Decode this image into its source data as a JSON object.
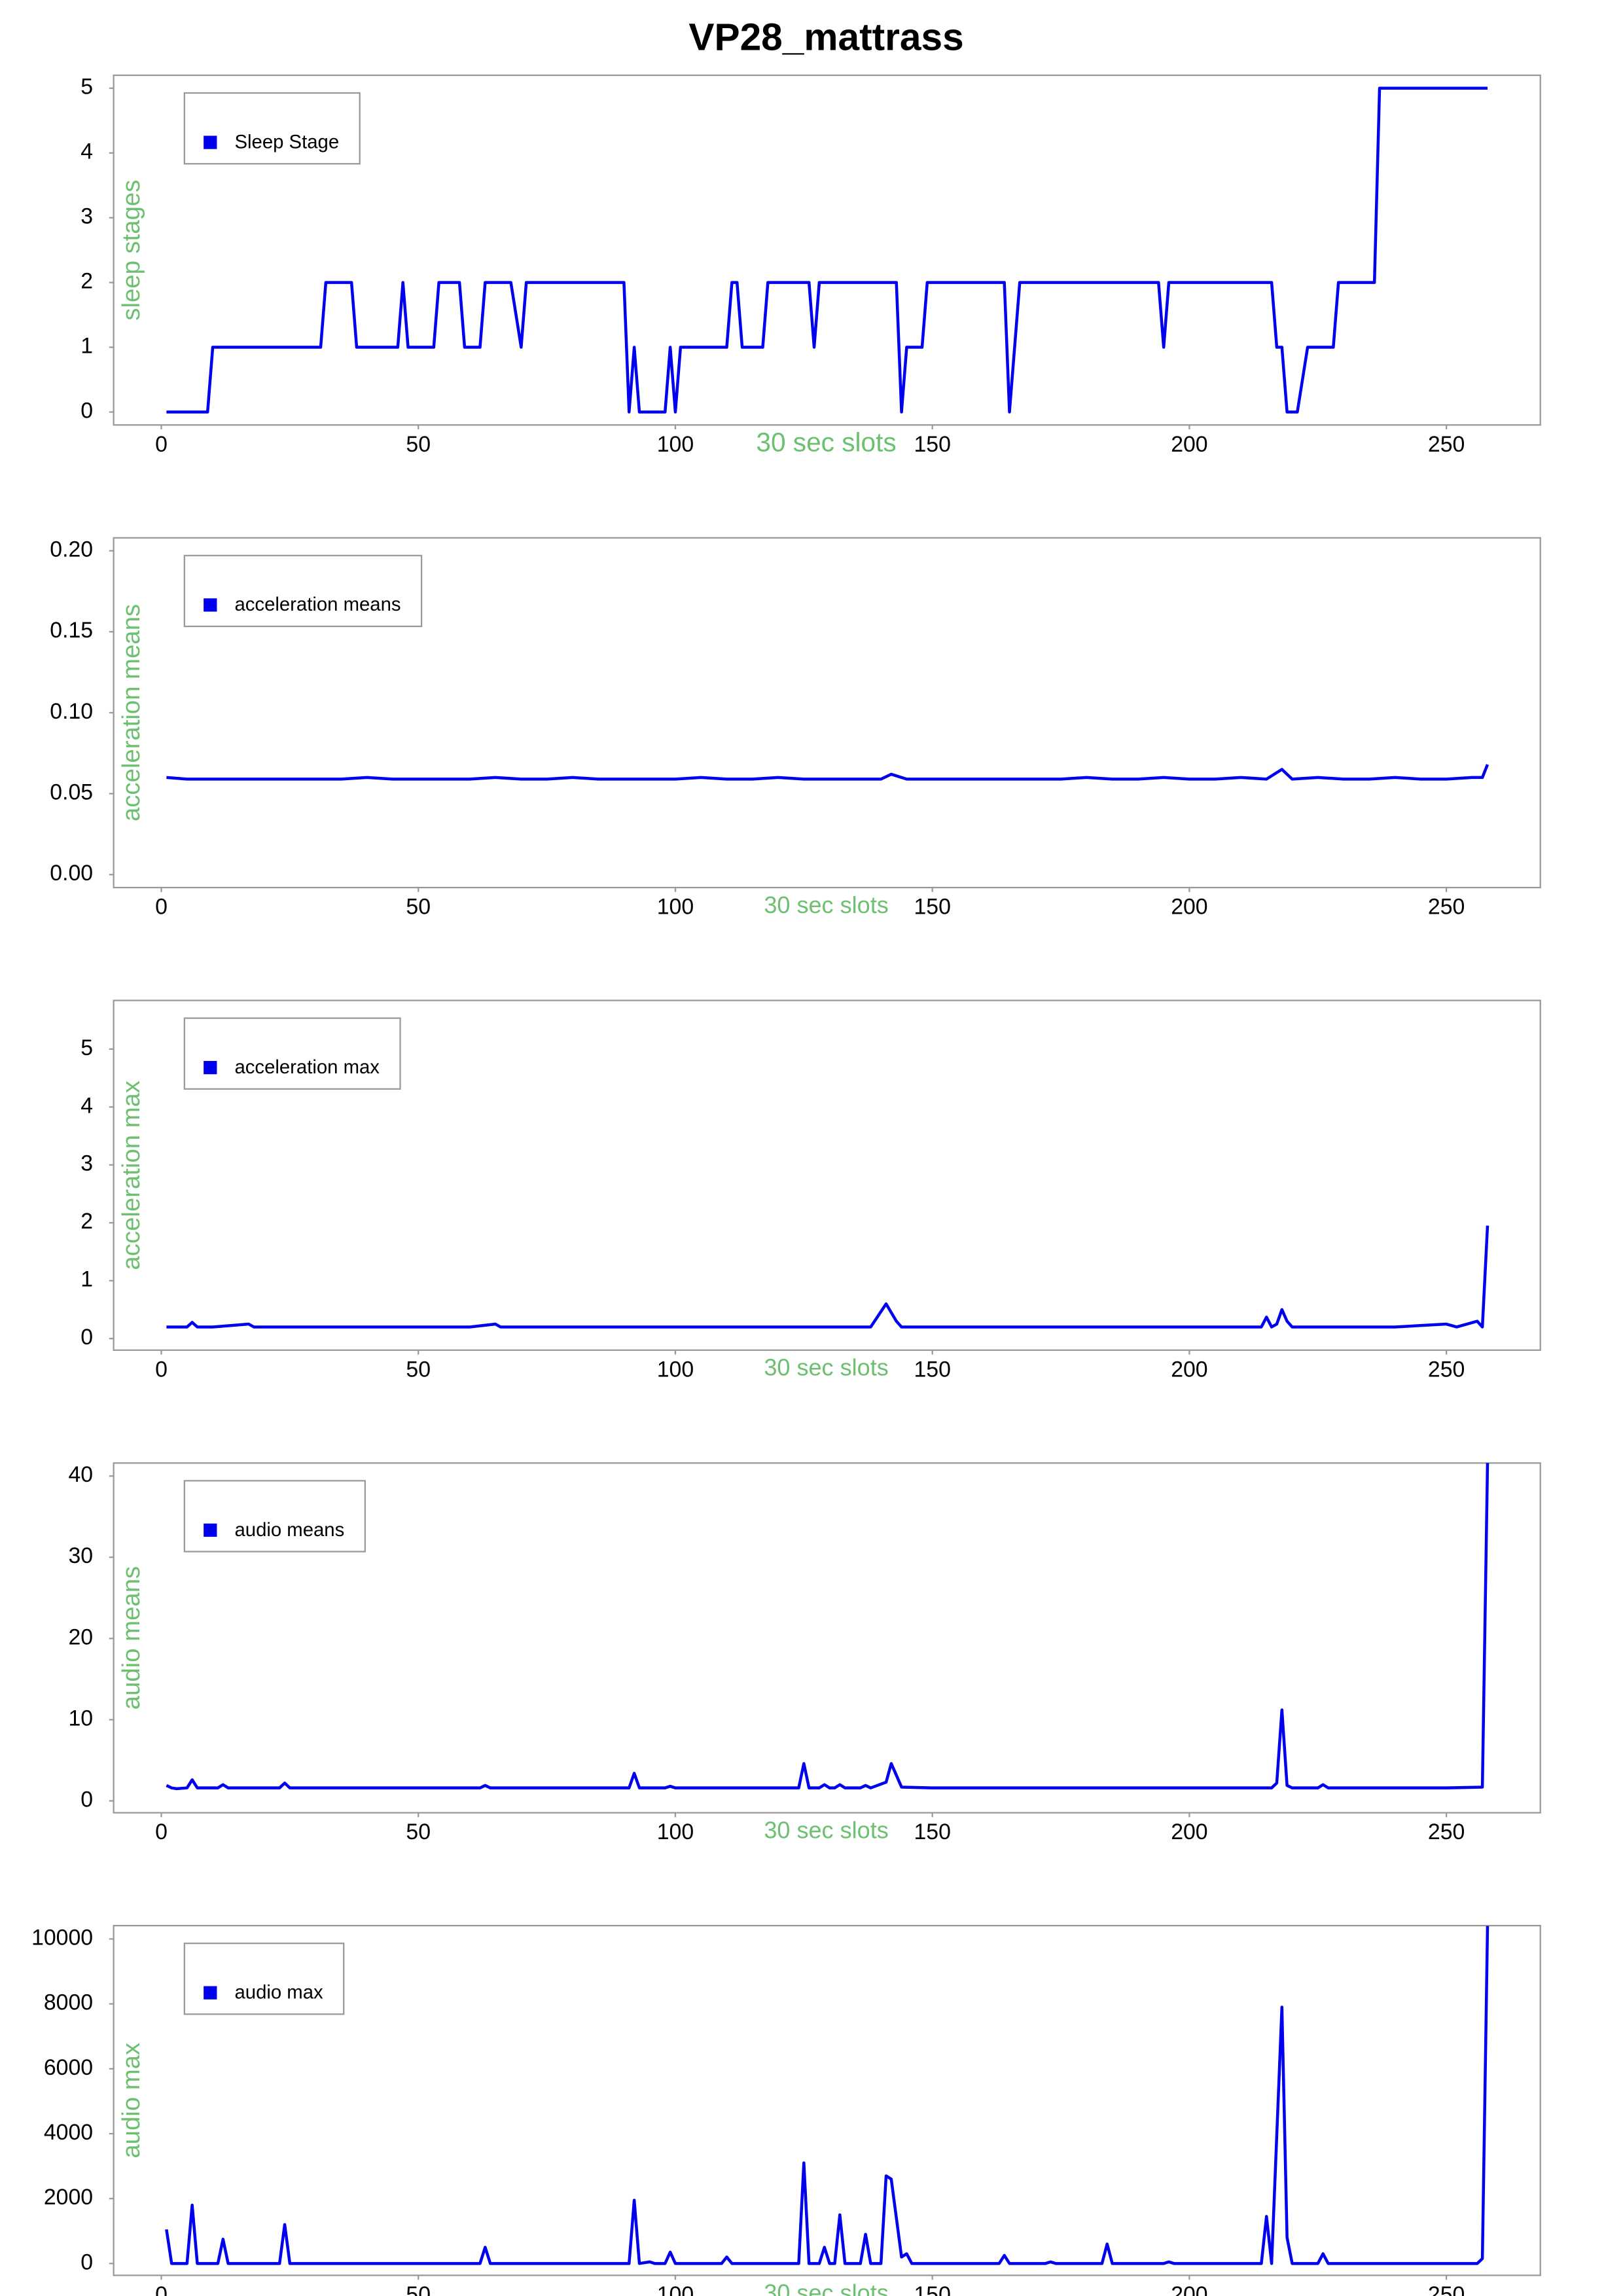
{
  "title": "VP28_mattrass",
  "chart_data": [
    {
      "type": "line",
      "x_label": "30 sec slots",
      "y_label": "sleep stages",
      "legend": "top-left",
      "x": [
        1,
        9,
        10,
        31,
        32,
        37,
        38,
        46,
        47,
        48,
        53,
        54,
        58,
        59,
        62,
        63,
        68,
        70,
        71,
        90,
        91,
        92,
        93,
        98,
        99,
        100,
        101,
        110,
        111,
        112,
        113,
        117,
        118,
        126,
        127,
        128,
        143,
        144,
        145,
        148,
        149,
        164,
        165,
        167,
        194,
        195,
        196,
        216,
        217,
        218,
        219,
        221,
        223,
        228,
        229,
        236,
        237,
        258
      ],
      "series": [
        {
          "name": "Sleep Stage",
          "color": "#0000ee",
          "values": [
            0,
            0,
            1,
            1,
            2,
            2,
            1,
            1,
            2,
            1,
            1,
            2,
            2,
            1,
            1,
            2,
            2,
            1,
            2,
            2,
            0,
            1,
            0,
            0,
            1,
            0,
            1,
            1,
            2,
            2,
            1,
            1,
            2,
            2,
            1,
            2,
            2,
            0,
            1,
            1,
            2,
            2,
            0,
            2,
            2,
            1,
            2,
            2,
            1,
            1,
            0,
            0,
            1,
            1,
            2,
            2,
            5,
            5
          ]
        }
      ],
      "xlim": [
        -9.28,
        268.28
      ],
      "ylim": [
        -0.2,
        5.2
      ],
      "xticks": [
        0,
        50,
        100,
        150,
        200,
        250
      ],
      "yticks": [
        0,
        1,
        2,
        3,
        4,
        5
      ]
    },
    {
      "type": "line",
      "x_label": "30 sec slots",
      "y_label": "acceleration means",
      "legend": "top-left",
      "x": [
        1,
        5,
        10,
        15,
        20,
        25,
        30,
        35,
        40,
        45,
        50,
        55,
        60,
        65,
        70,
        75,
        80,
        85,
        90,
        95,
        100,
        105,
        110,
        115,
        120,
        125,
        130,
        135,
        140,
        142,
        145,
        150,
        155,
        160,
        165,
        170,
        175,
        180,
        185,
        190,
        195,
        200,
        205,
        210,
        215,
        218,
        220,
        225,
        230,
        235,
        240,
        245,
        250,
        255,
        257,
        258
      ],
      "series": [
        {
          "name": "acceleration means",
          "color": "#0000ee",
          "values": [
            0.06,
            0.059,
            0.059,
            0.059,
            0.059,
            0.059,
            0.059,
            0.059,
            0.06,
            0.059,
            0.059,
            0.059,
            0.059,
            0.06,
            0.059,
            0.059,
            0.06,
            0.059,
            0.059,
            0.059,
            0.059,
            0.06,
            0.059,
            0.059,
            0.06,
            0.059,
            0.059,
            0.059,
            0.059,
            0.062,
            0.059,
            0.059,
            0.059,
            0.059,
            0.059,
            0.059,
            0.059,
            0.06,
            0.059,
            0.059,
            0.06,
            0.059,
            0.059,
            0.06,
            0.059,
            0.065,
            0.059,
            0.06,
            0.059,
            0.059,
            0.06,
            0.059,
            0.059,
            0.06,
            0.06,
            0.068
          ]
        }
      ],
      "xlim": [
        -9.28,
        268.28
      ],
      "ylim": [
        -0.008,
        0.208
      ],
      "xticks": [
        0,
        50,
        100,
        150,
        200,
        250
      ],
      "yticks": [
        {
          "value": 0,
          "label": "0.00"
        },
        {
          "value": 0.05,
          "label": "0.05"
        },
        {
          "value": 0.1,
          "label": "0.10"
        },
        {
          "value": 0.15,
          "label": "0.15"
        },
        {
          "value": 0.2,
          "label": "0.20"
        }
      ]
    },
    {
      "type": "line",
      "x_label": "30 sec slots",
      "y_label": "acceleration max",
      "legend": "top-left",
      "x": [
        1,
        5,
        6,
        7,
        10,
        17,
        18,
        20,
        30,
        40,
        50,
        60,
        65,
        66,
        70,
        80,
        90,
        100,
        110,
        120,
        130,
        138,
        141,
        143,
        144,
        150,
        160,
        170,
        180,
        190,
        200,
        210,
        214,
        215,
        216,
        217,
        218,
        219,
        220,
        230,
        240,
        250,
        252,
        256,
        257,
        258
      ],
      "series": [
        {
          "name": "acceleration max",
          "color": "#0000ee",
          "values": [
            0.2,
            0.2,
            0.28,
            0.2,
            0.2,
            0.25,
            0.2,
            0.2,
            0.2,
            0.2,
            0.2,
            0.2,
            0.25,
            0.2,
            0.2,
            0.2,
            0.2,
            0.2,
            0.2,
            0.2,
            0.2,
            0.2,
            0.6,
            0.3,
            0.2,
            0.2,
            0.2,
            0.2,
            0.2,
            0.2,
            0.2,
            0.2,
            0.2,
            0.37,
            0.2,
            0.25,
            0.5,
            0.3,
            0.2,
            0.2,
            0.2,
            0.25,
            0.2,
            0.3,
            0.2,
            1.95
          ]
        }
      ],
      "xlim": [
        -9.28,
        268.28
      ],
      "ylim": [
        -0.2,
        5.84
      ],
      "xticks": [
        0,
        50,
        100,
        150,
        200,
        250
      ],
      "yticks": [
        0,
        1,
        2,
        3,
        4,
        5
      ]
    },
    {
      "type": "line",
      "x_label": "30 sec slots",
      "y_label": "audio means",
      "legend": "top-left",
      "x": [
        1,
        2,
        3,
        5,
        6,
        7,
        11,
        12,
        13,
        23,
        24,
        25,
        50,
        62,
        63,
        64,
        91,
        92,
        93,
        98,
        99,
        100,
        124,
        125,
        126,
        128,
        129,
        130,
        131,
        132,
        133,
        136,
        137,
        138,
        141,
        142,
        144,
        150,
        200,
        216,
        217,
        218,
        219,
        220,
        225,
        226,
        227,
        250,
        257,
        258
      ],
      "series": [
        {
          "name": "audio means",
          "color": "#0000ee",
          "values": [
            1.9,
            1.6,
            1.5,
            1.6,
            2.6,
            1.6,
            1.6,
            2.0,
            1.6,
            1.6,
            2.2,
            1.6,
            1.6,
            1.6,
            1.9,
            1.6,
            1.6,
            3.4,
            1.6,
            1.6,
            1.8,
            1.6,
            1.6,
            4.6,
            1.6,
            1.6,
            2.0,
            1.6,
            1.6,
            2.0,
            1.6,
            1.6,
            1.9,
            1.6,
            2.3,
            4.6,
            1.7,
            1.6,
            1.6,
            1.6,
            2.2,
            11.2,
            1.9,
            1.6,
            1.6,
            2.0,
            1.6,
            1.6,
            1.7,
            41.6
          ]
        }
      ],
      "xlim": [
        -9.28,
        268.28
      ],
      "ylim": [
        -1.46,
        41.6
      ],
      "xticks": [
        0,
        50,
        100,
        150,
        200,
        250
      ],
      "yticks": [
        0,
        10,
        20,
        30,
        40
      ]
    },
    {
      "type": "line",
      "x_label": "30 sec slots",
      "y_label": "audio max",
      "legend": "top-left",
      "x": [
        1,
        2,
        5,
        6,
        7,
        11,
        12,
        13,
        23,
        24,
        25,
        62,
        63,
        64,
        91,
        92,
        93,
        95,
        96,
        98,
        99,
        100,
        109,
        110,
        111,
        124,
        125,
        126,
        128,
        129,
        130,
        131,
        132,
        133,
        136,
        137,
        138,
        140,
        141,
        142,
        144,
        145,
        146,
        163,
        164,
        165,
        172,
        173,
        174,
        183,
        184,
        185,
        195,
        196,
        197,
        214,
        215,
        216,
        218,
        219,
        220,
        225,
        226,
        227,
        256,
        257,
        258
      ],
      "series": [
        {
          "name": "audio max",
          "color": "#0000ee",
          "values": [
            1050,
            0,
            0,
            1800,
            0,
            0,
            750,
            0,
            0,
            1200,
            0,
            0,
            500,
            0,
            0,
            1950,
            0,
            50,
            0,
            0,
            350,
            0,
            0,
            200,
            0,
            0,
            3100,
            0,
            0,
            500,
            0,
            0,
            1500,
            0,
            0,
            900,
            0,
            0,
            2700,
            2600,
            200,
            300,
            0,
            0,
            250,
            0,
            0,
            50,
            0,
            0,
            600,
            0,
            0,
            50,
            0,
            0,
            1450,
            0,
            7900,
            800,
            0,
            0,
            300,
            0,
            0,
            150,
            10400
          ]
        }
      ],
      "xlim": [
        -9.28,
        268.28
      ],
      "ylim": [
        -365,
        10411
      ],
      "xticks": [
        0,
        50,
        100,
        150,
        200,
        250
      ],
      "yticks": [
        0,
        2000,
        4000,
        6000,
        8000,
        10000
      ]
    }
  ]
}
